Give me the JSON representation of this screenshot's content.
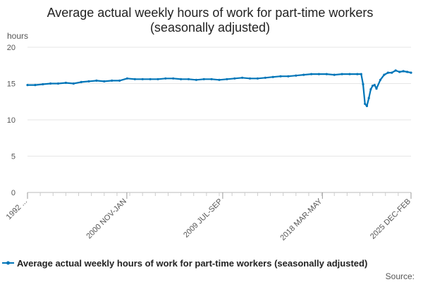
{
  "chart_data": {
    "type": "line",
    "title_line1": "Average actual weekly hours of work for part-time workers",
    "title_line2": "(seasonally adjusted)",
    "ylabel": "hours",
    "ylim": [
      0,
      20
    ],
    "yticks": [
      0,
      5,
      10,
      15,
      20
    ],
    "x_tick_labels": [
      "1992 ...",
      "2000 NOV-JAN",
      "2009 JUL-SEP",
      "2018 MAR-MAY",
      "2025 DEC-FEB"
    ],
    "x_tick_positions": [
      0,
      0.259,
      0.509,
      0.769,
      1.0
    ],
    "grid": true,
    "legend_position": "bottom",
    "series_color": "#0075b8",
    "series": [
      {
        "name": "Average actual weekly hours of work for part-time workers (seasonally adjusted)",
        "x": [
          0,
          0.02,
          0.04,
          0.06,
          0.08,
          0.1,
          0.12,
          0.14,
          0.16,
          0.18,
          0.2,
          0.22,
          0.24,
          0.26,
          0.28,
          0.3,
          0.32,
          0.34,
          0.36,
          0.38,
          0.4,
          0.42,
          0.44,
          0.46,
          0.48,
          0.5,
          0.52,
          0.54,
          0.56,
          0.58,
          0.6,
          0.62,
          0.64,
          0.66,
          0.68,
          0.7,
          0.72,
          0.74,
          0.76,
          0.78,
          0.8,
          0.82,
          0.84,
          0.86,
          0.87,
          0.875,
          0.88,
          0.885,
          0.89,
          0.895,
          0.9,
          0.905,
          0.91,
          0.92,
          0.93,
          0.94,
          0.95,
          0.96,
          0.97,
          0.98,
          0.99,
          1.0
        ],
        "values": [
          14.8,
          14.8,
          14.9,
          15.0,
          15.0,
          15.1,
          15.0,
          15.2,
          15.3,
          15.4,
          15.3,
          15.4,
          15.4,
          15.7,
          15.6,
          15.6,
          15.6,
          15.6,
          15.7,
          15.7,
          15.6,
          15.6,
          15.5,
          15.6,
          15.6,
          15.5,
          15.6,
          15.7,
          15.8,
          15.7,
          15.7,
          15.8,
          15.9,
          16.0,
          16.0,
          16.1,
          16.2,
          16.3,
          16.3,
          16.3,
          16.2,
          16.3,
          16.3,
          16.3,
          16.3,
          14.9,
          12.2,
          11.9,
          13.0,
          14.2,
          14.7,
          14.8,
          14.3,
          15.5,
          16.2,
          16.5,
          16.5,
          16.8,
          16.6,
          16.7,
          16.6,
          16.5
        ]
      }
    ]
  },
  "source_label": "Source:"
}
